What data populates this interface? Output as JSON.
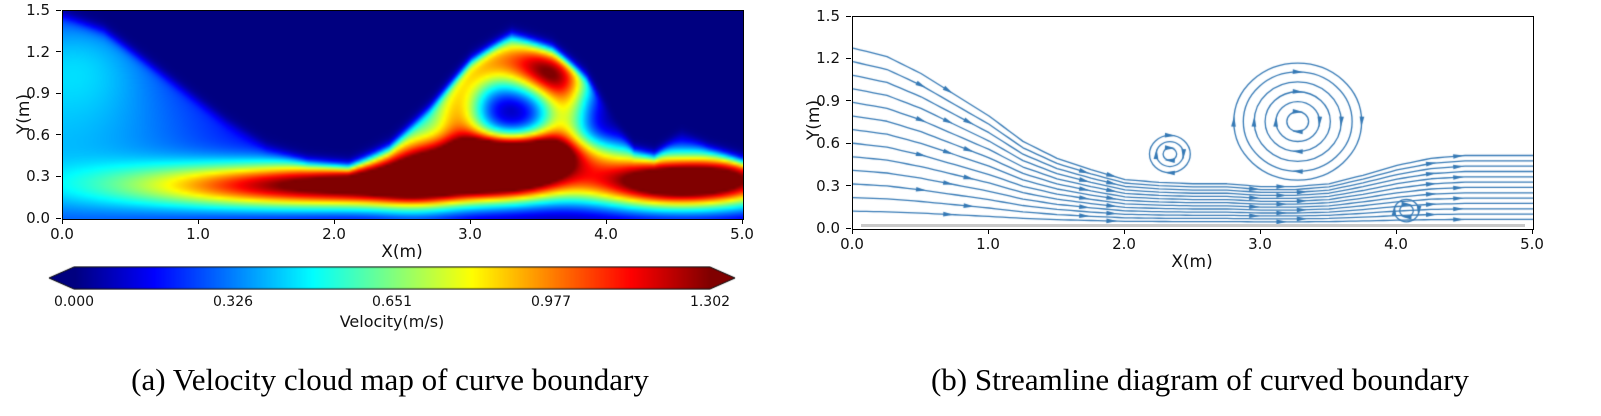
{
  "left_panel": {
    "xlabel": "X(m)",
    "ylabel": "Y(m)",
    "xticks": [
      "0.0",
      "1.0",
      "2.0",
      "3.0",
      "4.0",
      "5.0"
    ],
    "yticks": [
      "0.0",
      "0.3",
      "0.6",
      "0.9",
      "1.2",
      "1.5"
    ],
    "colorbar": {
      "label": "Velocity(m/s)",
      "ticks": [
        "0.000",
        "0.326",
        "0.651",
        "0.977",
        "1.302"
      ]
    },
    "caption": "(a) Velocity cloud map of curve boundary"
  },
  "right_panel": {
    "xlabel": "X(m)",
    "ylabel": "Y(m)",
    "xticks": [
      "0.0",
      "1.0",
      "2.0",
      "3.0",
      "4.0",
      "5.0"
    ],
    "yticks": [
      "0.0",
      "0.3",
      "0.6",
      "0.9",
      "1.2",
      "1.5"
    ],
    "caption": "(b) Streamline diagram of curved boundary"
  },
  "chart_data": [
    {
      "type": "heatmap",
      "subtype": "velocity-contour-cloud-map",
      "title": "",
      "xlabel": "X(m)",
      "ylabel": "Y(m)",
      "xlim": [
        0,
        5
      ],
      "ylim": [
        0,
        1.5
      ],
      "xticks": [
        0.0,
        1.0,
        2.0,
        3.0,
        4.0,
        5.0
      ],
      "yticks": [
        0.0,
        0.3,
        0.6,
        0.9,
        1.2,
        1.5
      ],
      "colormap": "jet",
      "vrange": [
        0,
        1.302
      ],
      "colorbar_label": "Velocity(m/s)",
      "colorbar_ticks": [
        0.0,
        0.326,
        0.651,
        0.977,
        1.302
      ],
      "colorbar_extend": "both",
      "free_surface": [
        [
          0,
          1.47
        ],
        [
          0.3,
          1.36
        ],
        [
          0.6,
          1.14
        ],
        [
          0.9,
          0.92
        ],
        [
          1.2,
          0.7
        ],
        [
          1.5,
          0.52
        ],
        [
          1.8,
          0.42
        ],
        [
          2.1,
          0.38
        ],
        [
          2.4,
          0.52
        ],
        [
          2.7,
          0.8
        ],
        [
          3.0,
          1.14
        ],
        [
          3.3,
          1.34
        ],
        [
          3.6,
          1.24
        ],
        [
          3.85,
          1.02
        ],
        [
          4.05,
          0.72
        ],
        [
          4.2,
          0.5
        ],
        [
          4.35,
          0.46
        ],
        [
          4.55,
          0.64
        ],
        [
          4.75,
          0.52
        ],
        [
          5,
          0.42
        ]
      ],
      "velocity_features": [
        {
          "kind": "blob",
          "x": -0.1,
          "y": 0.5,
          "sx": 1.2,
          "sy": 0.62,
          "a": 0.38
        },
        {
          "kind": "blob",
          "x": 0.1,
          "y": 1.2,
          "sx": 0.45,
          "sy": 0.3,
          "a": 0.22
        },
        {
          "kind": "blob",
          "x": 2.0,
          "y": 0.24,
          "sx": 0.95,
          "sy": 0.115,
          "a": 1.25
        },
        {
          "kind": "blob",
          "x": 3.1,
          "y": 0.32,
          "sx": 0.6,
          "sy": 0.13,
          "a": 0.9
        },
        {
          "kind": "blob",
          "x": 4.45,
          "y": 0.26,
          "sx": 0.4,
          "sy": 0.13,
          "a": 1.32
        },
        {
          "kind": "blob",
          "x": 5.0,
          "y": 0.3,
          "sx": 0.35,
          "sy": 0.14,
          "a": 0.8
        },
        {
          "kind": "ring",
          "x": 3.3,
          "y": 0.8,
          "r": 0.38,
          "w": 0.14,
          "a": 0.72
        },
        {
          "kind": "blob",
          "x": 3.55,
          "y": 1.05,
          "sx": 0.3,
          "sy": 0.13,
          "a": 0.6
        },
        {
          "kind": "blob",
          "x": 3.35,
          "y": 0.47,
          "sx": 0.5,
          "sy": 0.1,
          "a": 0.85
        },
        {
          "kind": "blob",
          "x": 2.6,
          "y": 0.55,
          "sx": 0.22,
          "sy": 0.3,
          "a": 0.5
        }
      ]
    },
    {
      "type": "streamline",
      "title": "",
      "xlabel": "X(m)",
      "ylabel": "Y(m)",
      "xlim": [
        0,
        5
      ],
      "ylim": [
        0,
        1.5
      ],
      "xticks": [
        0.0,
        1.0,
        2.0,
        3.0,
        4.0,
        5.0
      ],
      "yticks": [
        0.0,
        0.3,
        0.6,
        0.9,
        1.2,
        1.5
      ],
      "color": "#3579b5",
      "n_open_streamlines": 13,
      "bed_level": 0.03,
      "flow_envelope": [
        [
          0,
          1.28
        ],
        [
          0.25,
          1.22
        ],
        [
          0.5,
          1.1
        ],
        [
          0.75,
          0.95
        ],
        [
          1.0,
          0.8
        ],
        [
          1.25,
          0.62
        ],
        [
          1.5,
          0.5
        ],
        [
          1.75,
          0.42
        ],
        [
          2.0,
          0.35
        ],
        [
          2.25,
          0.33
        ],
        [
          2.5,
          0.32
        ],
        [
          2.75,
          0.32
        ],
        [
          3.0,
          0.3
        ],
        [
          3.25,
          0.3
        ],
        [
          3.5,
          0.32
        ],
        [
          3.75,
          0.38
        ],
        [
          4.0,
          0.45
        ],
        [
          4.25,
          0.5
        ],
        [
          4.5,
          0.52
        ],
        [
          4.75,
          0.52
        ],
        [
          5.0,
          0.52
        ]
      ],
      "vortices": [
        {
          "x": 3.27,
          "y": 0.76,
          "radii": [
            0.08,
            0.16,
            0.24,
            0.32,
            0.4,
            0.47
          ]
        },
        {
          "x": 2.33,
          "y": 0.53,
          "radii": [
            0.05,
            0.1,
            0.15
          ]
        },
        {
          "x": 4.07,
          "y": 0.13,
          "radii": [
            0.05,
            0.09
          ]
        }
      ]
    }
  ]
}
